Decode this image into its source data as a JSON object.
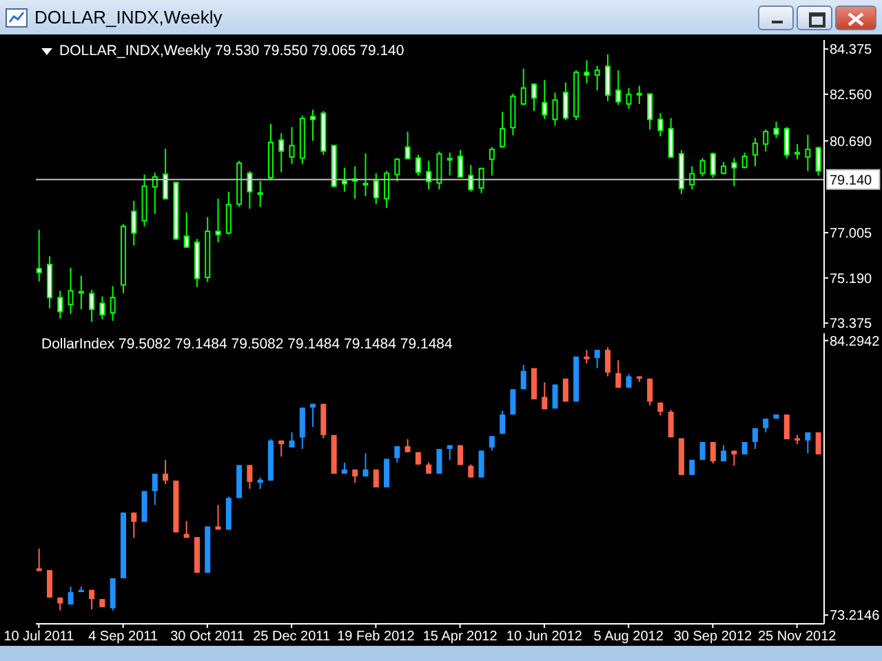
{
  "chart_data": [
    {
      "type": "candlestick",
      "title": "DOLLAR_INDX,Weekly",
      "subtitle": "DOLLAR_INDX,Weekly 79.530 79.550 79.065 79.140",
      "tick_labels": "y",
      "x": [
        "2011-07-10",
        "2011-07-17",
        "2011-07-24",
        "2011-07-31",
        "2011-08-07",
        "2011-08-14",
        "2011-08-21",
        "2011-08-28",
        "2011-09-04",
        "2011-09-11",
        "2011-09-18",
        "2011-09-25",
        "2011-10-02",
        "2011-10-09",
        "2011-10-16",
        "2011-10-23",
        "2011-10-30",
        "2011-11-06",
        "2011-11-13",
        "2011-11-20",
        "2011-11-27",
        "2011-12-04",
        "2011-12-11",
        "2011-12-18",
        "2011-12-25",
        "2012-01-01",
        "2012-01-08",
        "2012-01-15",
        "2012-01-22",
        "2012-01-29",
        "2012-02-05",
        "2012-02-12",
        "2012-02-19",
        "2012-02-26",
        "2012-03-04",
        "2012-03-11",
        "2012-03-18",
        "2012-03-25",
        "2012-04-01",
        "2012-04-08",
        "2012-04-15",
        "2012-04-22",
        "2012-04-29",
        "2012-05-06",
        "2012-05-13",
        "2012-05-20",
        "2012-05-27",
        "2012-06-03",
        "2012-06-10",
        "2012-06-17",
        "2012-06-24",
        "2012-07-01",
        "2012-07-08",
        "2012-07-15",
        "2012-07-22",
        "2012-07-29",
        "2012-08-05",
        "2012-08-12",
        "2012-08-19",
        "2012-08-26",
        "2012-09-02",
        "2012-09-09",
        "2012-09-16",
        "2012-09-23",
        "2012-09-30",
        "2012-10-07",
        "2012-10-14",
        "2012-10-21",
        "2012-10-28",
        "2012-11-04",
        "2012-11-11",
        "2012-11-18",
        "2012-11-25",
        "2012-12-02",
        "2012-12-09"
      ],
      "xlim": [
        "2011-07-08",
        "2012-12-13"
      ],
      "ylim": [
        73.19,
        84.74
      ],
      "yticks": [
        84.375,
        {
          "value": 82.56,
          "label": "82.560"
        },
        {
          "value": 80.69,
          "label": "80.690"
        },
        77.005,
        {
          "value": 75.19,
          "label": "75.190"
        },
        73.375
      ],
      "ref_lines": [
        {
          "axis": "y",
          "value": 79.14,
          "label": "79.140",
          "color": "#c0c0c0"
        }
      ],
      "color": "#00ff00",
      "colors": [
        "#ffffff",
        "#ffffff",
        "#ffffff",
        "#000000",
        "#000000",
        "#ffffff",
        "#ffffff",
        "#000000",
        "#000000",
        "#ffffff",
        "#000000",
        "#000000",
        "#ffffff",
        "#ffffff",
        "#ffffff",
        "#ffffff",
        "#000000",
        "#ffffff",
        "#000000",
        "#000000",
        "#ffffff",
        "#000000",
        "#000000",
        "#ffffff",
        "#000000",
        "#000000",
        "#ffffff",
        "#ffffff",
        "#ffffff",
        "#ffffff",
        "#ffffff",
        "#000000",
        "#ffffff",
        "#000000",
        "#000000",
        "#ffffff",
        "#ffffff",
        "#ffffff",
        "#000000",
        "#000000",
        "#ffffff",
        "#ffffff",
        "#000000",
        "#000000",
        "#000000",
        "#000000",
        "#000000",
        "#ffffff",
        "#ffffff",
        "#000000",
        "#ffffff",
        "#000000",
        "#ffffff",
        "#000000",
        "#ffffff",
        "#ffffff",
        "#000000",
        "#000000",
        "#ffffff",
        "#ffffff",
        "#ffffff",
        "#ffffff",
        "#000000",
        "#000000",
        "#ffffff",
        "#000000",
        "#ffffff",
        "#000000",
        "#000000",
        "#000000",
        "#ffffff",
        "#ffffff",
        "#000000",
        "#000000",
        "#ffffff"
      ],
      "ohlc": [
        [
          75.56,
          77.12,
          75.04,
          75.41
        ],
        [
          75.73,
          76.06,
          73.97,
          74.4
        ],
        [
          74.4,
          74.67,
          73.56,
          73.84
        ],
        [
          74.12,
          75.6,
          73.75,
          74.67
        ],
        [
          74.64,
          75.28,
          73.93,
          74.64
        ],
        [
          74.56,
          74.71,
          73.43,
          73.93
        ],
        [
          74.17,
          74.45,
          73.53,
          73.71
        ],
        [
          73.79,
          74.86,
          73.47,
          74.4
        ],
        [
          74.91,
          77.36,
          74.58,
          77.26
        ],
        [
          77.86,
          78.28,
          76.49,
          76.99
        ],
        [
          77.49,
          79.34,
          77.26,
          78.87
        ],
        [
          78.84,
          79.41,
          77.76,
          79.24
        ],
        [
          79.35,
          80.37,
          78.34,
          78.37
        ],
        [
          79.02,
          79.05,
          76.71,
          76.76
        ],
        [
          76.86,
          77.82,
          76.39,
          76.43
        ],
        [
          76.62,
          76.75,
          74.82,
          75.17
        ],
        [
          75.21,
          77.63,
          75.03,
          77.06
        ],
        [
          77.06,
          78.37,
          76.62,
          76.93
        ],
        [
          76.99,
          78.65,
          76.93,
          78.13
        ],
        [
          78.15,
          79.89,
          78.04,
          79.8
        ],
        [
          79.39,
          79.48,
          77.97,
          78.65
        ],
        [
          78.6,
          79.08,
          78.04,
          78.6
        ],
        [
          79.21,
          81.37,
          79.11,
          80.63
        ],
        [
          80.72,
          81.0,
          79.43,
          80.28
        ],
        [
          80.04,
          81.24,
          79.76,
          80.5
        ],
        [
          80.0,
          81.7,
          79.76,
          81.59
        ],
        [
          81.67,
          81.94,
          80.69,
          81.55
        ],
        [
          81.8,
          81.89,
          80.13,
          80.28
        ],
        [
          80.5,
          80.52,
          78.84,
          78.87
        ],
        [
          79.08,
          79.61,
          78.65,
          78.97
        ],
        [
          79.15,
          79.67,
          78.37,
          79.08
        ],
        [
          78.98,
          80.19,
          78.47,
          78.98
        ],
        [
          79.08,
          79.39,
          78.15,
          78.41
        ],
        [
          78.37,
          79.48,
          78.0,
          79.39
        ],
        [
          79.34,
          80.0,
          79.06,
          79.95
        ],
        [
          80.44,
          81.06,
          79.95,
          79.98
        ],
        [
          80.0,
          80.13,
          79.3,
          79.43
        ],
        [
          79.45,
          79.89,
          78.74,
          79.06
        ],
        [
          79.0,
          80.26,
          78.74,
          80.17
        ],
        [
          79.98,
          80.22,
          79.3,
          79.98
        ],
        [
          80.07,
          80.32,
          79.21,
          79.24
        ],
        [
          79.3,
          79.72,
          78.65,
          78.74
        ],
        [
          78.8,
          79.61,
          78.6,
          79.58
        ],
        [
          79.95,
          80.44,
          79.3,
          80.35
        ],
        [
          80.46,
          81.85,
          80.41,
          81.18
        ],
        [
          81.22,
          82.59,
          80.91,
          82.48
        ],
        [
          82.17,
          83.59,
          82.13,
          82.81
        ],
        [
          82.96,
          83.0,
          81.89,
          82.41
        ],
        [
          82.22,
          83.13,
          81.57,
          81.74
        ],
        [
          81.55,
          82.63,
          81.3,
          82.33
        ],
        [
          82.63,
          83.03,
          81.52,
          81.61
        ],
        [
          81.67,
          83.52,
          81.52,
          83.44
        ],
        [
          83.44,
          83.92,
          83.0,
          83.33
        ],
        [
          83.33,
          83.7,
          82.72,
          83.52
        ],
        [
          83.68,
          84.16,
          82.29,
          82.53
        ],
        [
          82.72,
          83.52,
          82.13,
          82.26
        ],
        [
          82.17,
          82.81,
          81.98,
          82.55
        ],
        [
          82.59,
          82.9,
          82.17,
          82.59
        ],
        [
          82.57,
          82.59,
          81.15,
          81.55
        ],
        [
          81.55,
          81.8,
          80.87,
          81.11
        ],
        [
          81.18,
          81.61,
          80.0,
          80.04
        ],
        [
          80.17,
          80.32,
          78.56,
          78.78
        ],
        [
          78.93,
          79.67,
          78.74,
          79.37
        ],
        [
          79.39,
          80.0,
          79.26,
          79.89
        ],
        [
          80.17,
          80.22,
          79.21,
          79.34
        ],
        [
          79.39,
          79.85,
          79.34,
          79.67
        ],
        [
          79.8,
          80.0,
          78.87,
          79.61
        ],
        [
          79.63,
          80.22,
          79.58,
          80.07
        ],
        [
          80.13,
          80.81,
          79.67,
          80.59
        ],
        [
          80.56,
          81.15,
          80.26,
          81.06
        ],
        [
          81.18,
          81.46,
          80.81,
          80.96
        ],
        [
          81.18,
          81.24,
          79.98,
          80.13
        ],
        [
          80.22,
          80.56,
          79.95,
          80.22
        ],
        [
          80.04,
          80.93,
          79.48,
          80.35
        ],
        [
          80.41,
          80.46,
          79.3,
          79.48
        ]
      ]
    },
    {
      "type": "candlestick",
      "title": "DollarIndex 79.5082 79.1484 79.5082 79.1484 79.1484 79.1484",
      "x": [
        "2011-07-10",
        "2011-07-17",
        "2011-07-24",
        "2011-07-31",
        "2011-08-07",
        "2011-08-14",
        "2011-08-21",
        "2011-08-28",
        "2011-09-04",
        "2011-09-11",
        "2011-09-18",
        "2011-09-25",
        "2011-10-02",
        "2011-10-09",
        "2011-10-16",
        "2011-10-23",
        "2011-10-30",
        "2011-11-06",
        "2011-11-13",
        "2011-11-20",
        "2011-11-27",
        "2011-12-04",
        "2011-12-11",
        "2011-12-18",
        "2011-12-25",
        "2012-01-01",
        "2012-01-08",
        "2012-01-15",
        "2012-01-22",
        "2012-01-29",
        "2012-02-05",
        "2012-02-12",
        "2012-02-19",
        "2012-02-26",
        "2012-03-04",
        "2012-03-11",
        "2012-03-18",
        "2012-03-25",
        "2012-04-01",
        "2012-04-08",
        "2012-04-15",
        "2012-04-22",
        "2012-04-29",
        "2012-05-06",
        "2012-05-13",
        "2012-05-20",
        "2012-05-27",
        "2012-06-03",
        "2012-06-10",
        "2012-06-17",
        "2012-06-24",
        "2012-07-01",
        "2012-07-08",
        "2012-07-15",
        "2012-07-22",
        "2012-07-29",
        "2012-08-05",
        "2012-08-12",
        "2012-08-19",
        "2012-08-26",
        "2012-09-02",
        "2012-09-09",
        "2012-09-16",
        "2012-09-23",
        "2012-09-30",
        "2012-10-07",
        "2012-10-14",
        "2012-10-21",
        "2012-10-28",
        "2012-11-04",
        "2012-11-11",
        "2012-11-18",
        "2012-11-25",
        "2012-12-02",
        "2012-12-09"
      ],
      "xlim": [
        "2011-07-08",
        "2012-12-13"
      ],
      "xticks": [
        {
          "value": "2011-07-10",
          "label": "10 Jul 2011"
        },
        {
          "value": "2011-09-04",
          "label": "4 Sep 2011"
        },
        {
          "value": "2011-10-30",
          "label": "30 Oct 2011"
        },
        {
          "value": "2011-12-25",
          "label": "25 Dec 2011"
        },
        {
          "value": "2012-02-19",
          "label": "19 Feb 2012"
        },
        {
          "value": "2012-04-15",
          "label": "15 Apr 2012"
        },
        {
          "value": "2012-06-10",
          "label": "10 Jun 2012"
        },
        {
          "value": "2012-08-05",
          "label": "5 Aug 2012"
        },
        {
          "value": "2012-09-30",
          "label": "30 Sep 2012"
        },
        {
          "value": "2012-11-25",
          "label": "25 Nov 2012"
        }
      ],
      "ylim": [
        72.86,
        84.59
      ],
      "yticks": [
        84.2942,
        73.2146
      ],
      "colors": [
        "#ff6347",
        "#ff6347",
        "#ff6347",
        "#1e90ff",
        "#1e90ff",
        "#ff6347",
        "#ff6347",
        "#1e90ff",
        "#1e90ff",
        "#ff6347",
        "#1e90ff",
        "#1e90ff",
        "#ff6347",
        "#ff6347",
        "#ff6347",
        "#ff6347",
        "#1e90ff",
        "#ff6347",
        "#1e90ff",
        "#1e90ff",
        "#ff6347",
        "#1e90ff",
        "#1e90ff",
        "#ff6347",
        "#1e90ff",
        "#1e90ff",
        "#1e90ff",
        "#ff6347",
        "#ff6347",
        "#1e90ff",
        "#ff6347",
        "#1e90ff",
        "#ff6347",
        "#1e90ff",
        "#1e90ff",
        "#ff6347",
        "#ff6347",
        "#ff6347",
        "#1e90ff",
        "#1e90ff",
        "#ff6347",
        "#ff6347",
        "#1e90ff",
        "#1e90ff",
        "#1e90ff",
        "#1e90ff",
        "#1e90ff",
        "#ff6347",
        "#ff6347",
        "#1e90ff",
        "#ff6347",
        "#1e90ff",
        "#ff6347",
        "#1e90ff",
        "#ff6347",
        "#ff6347",
        "#1e90ff",
        "#ff6347",
        "#ff6347",
        "#ff6347",
        "#ff6347",
        "#ff6347",
        "#1e90ff",
        "#1e90ff",
        "#ff6347",
        "#1e90ff",
        "#ff6347",
        "#1e90ff",
        "#1e90ff",
        "#1e90ff",
        "#1e90ff",
        "#ff6347",
        "#ff6347",
        "#1e90ff",
        "#ff6347"
      ],
      "ohlc": [
        [
          75.1,
          75.9,
          74.99,
          74.99
        ],
        [
          75.03,
          75.03,
          73.92,
          73.92
        ],
        [
          73.92,
          73.92,
          73.4,
          73.68
        ],
        [
          73.64,
          74.36,
          73.64,
          74.14
        ],
        [
          74.14,
          74.36,
          74.14,
          74.23
        ],
        [
          74.23,
          74.23,
          73.44,
          73.86
        ],
        [
          73.86,
          73.86,
          73.53,
          73.53
        ],
        [
          73.49,
          74.7,
          73.4,
          74.7
        ],
        [
          74.7,
          77.35,
          74.7,
          77.35
        ],
        [
          77.35,
          77.35,
          76.33,
          76.98
        ],
        [
          76.98,
          78.22,
          76.98,
          78.22
        ],
        [
          78.22,
          78.92,
          77.66,
          78.92
        ],
        [
          78.92,
          79.48,
          78.5,
          78.64
        ],
        [
          78.64,
          78.64,
          76.55,
          76.55
        ],
        [
          76.49,
          77.01,
          76.33,
          76.33
        ],
        [
          76.36,
          76.36,
          74.92,
          74.92
        ],
        [
          74.92,
          76.79,
          74.92,
          76.79
        ],
        [
          76.79,
          77.66,
          76.66,
          76.66
        ],
        [
          76.66,
          77.99,
          76.66,
          77.94
        ],
        [
          77.94,
          79.27,
          77.94,
          79.27
        ],
        [
          79.27,
          79.27,
          78.31,
          78.59
        ],
        [
          78.55,
          78.77,
          78.31,
          78.68
        ],
        [
          78.64,
          80.31,
          78.64,
          80.26
        ],
        [
          80.26,
          80.26,
          79.61,
          80.11
        ],
        [
          79.98,
          80.59,
          79.98,
          80.26
        ],
        [
          80.38,
          81.59,
          79.92,
          81.59
        ],
        [
          81.59,
          81.74,
          80.81,
          81.74
        ],
        [
          81.74,
          81.74,
          80.35,
          80.48
        ],
        [
          80.48,
          80.48,
          78.92,
          78.92
        ],
        [
          78.92,
          79.37,
          78.92,
          79.09
        ],
        [
          79.09,
          79.09,
          78.55,
          78.81
        ],
        [
          78.81,
          79.74,
          78.81,
          79.09
        ],
        [
          79.09,
          79.09,
          78.37,
          78.37
        ],
        [
          78.37,
          79.52,
          78.37,
          79.52
        ],
        [
          79.55,
          80.03,
          79.37,
          80.03
        ],
        [
          80.03,
          80.31,
          79.79,
          79.79
        ],
        [
          79.79,
          79.79,
          79.29,
          79.29
        ],
        [
          79.29,
          79.37,
          78.92,
          78.92
        ],
        [
          78.92,
          79.92,
          78.92,
          79.92
        ],
        [
          79.92,
          80.07,
          79.48,
          80.07
        ],
        [
          80.07,
          80.07,
          79.27,
          79.27
        ],
        [
          79.24,
          79.29,
          78.77,
          78.77
        ],
        [
          78.77,
          79.85,
          78.77,
          79.85
        ],
        [
          79.98,
          80.44,
          79.85,
          80.44
        ],
        [
          80.53,
          81.46,
          80.53,
          81.31
        ],
        [
          81.31,
          82.33,
          81.31,
          82.33
        ],
        [
          82.33,
          83.31,
          82.33,
          83.07
        ],
        [
          83.18,
          83.18,
          81.92,
          81.92
        ],
        [
          82.02,
          82.61,
          81.52,
          81.52
        ],
        [
          81.55,
          82.52,
          81.55,
          82.52
        ],
        [
          82.76,
          82.76,
          81.83,
          81.83
        ],
        [
          81.83,
          83.65,
          81.83,
          83.65
        ],
        [
          83.65,
          83.92,
          83.37,
          83.54
        ],
        [
          83.59,
          83.92,
          83.18,
          83.92
        ],
        [
          83.92,
          84.02,
          82.85,
          83.0
        ],
        [
          82.98,
          83.5,
          82.39,
          82.39
        ],
        [
          82.39,
          82.94,
          82.39,
          82.85
        ],
        [
          82.85,
          82.85,
          82.63,
          82.76
        ],
        [
          82.76,
          82.76,
          81.68,
          81.83
        ],
        [
          81.79,
          81.79,
          81.27,
          81.42
        ],
        [
          81.42,
          81.5,
          80.39,
          80.39
        ],
        [
          80.35,
          80.35,
          78.87,
          78.87
        ],
        [
          78.87,
          79.48,
          78.87,
          79.48
        ],
        [
          79.48,
          80.2,
          79.48,
          80.2
        ],
        [
          80.2,
          80.2,
          79.33,
          79.42
        ],
        [
          79.42,
          80.07,
          79.42,
          79.85
        ],
        [
          79.85,
          79.85,
          79.24,
          79.7
        ],
        [
          79.7,
          80.2,
          79.7,
          80.2
        ],
        [
          80.2,
          80.76,
          79.92,
          80.76
        ],
        [
          80.76,
          81.14,
          80.59,
          81.14
        ],
        [
          81.14,
          81.31,
          81.14,
          81.31
        ],
        [
          81.31,
          81.31,
          80.31,
          80.31
        ],
        [
          80.35,
          80.48,
          80.11,
          80.26
        ],
        [
          80.26,
          80.59,
          79.74,
          80.59
        ],
        [
          80.59,
          80.59,
          79.7,
          79.7
        ]
      ]
    }
  ]
}
